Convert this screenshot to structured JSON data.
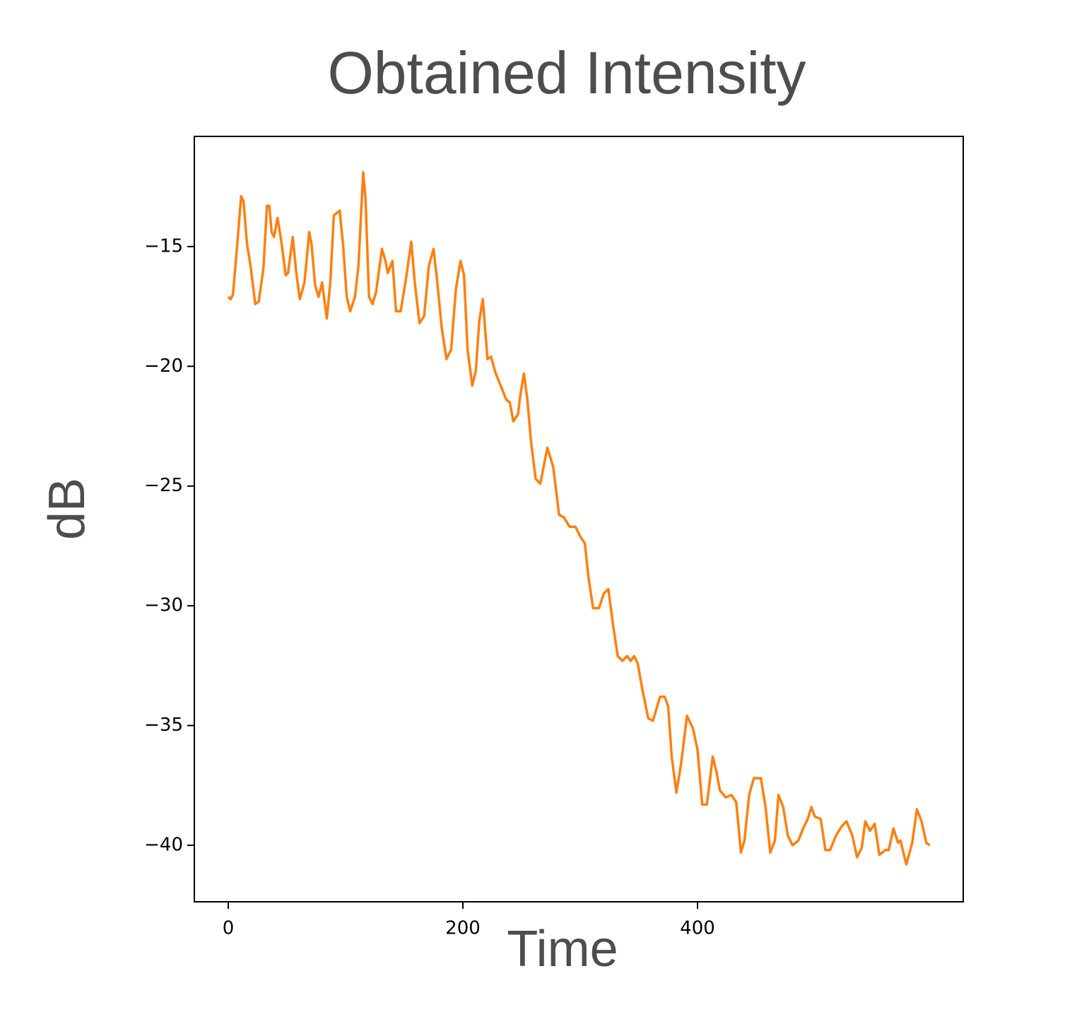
{
  "chart_data": {
    "type": "line",
    "title": "Obtained Intensity",
    "x_label": "Time",
    "y_label": "dB",
    "color": "#ff7f0e",
    "x": [
      0,
      2,
      4,
      7,
      11,
      13,
      16,
      19,
      23,
      26,
      30,
      33,
      35,
      37,
      39,
      42,
      45,
      49,
      51,
      55,
      58,
      61,
      65,
      69,
      71,
      74,
      77,
      80,
      84,
      87,
      90,
      95,
      98,
      101,
      104,
      108,
      111,
      115,
      117,
      120,
      123,
      126,
      131,
      134,
      136,
      140,
      143,
      147,
      151,
      156,
      159,
      163,
      167,
      171,
      175,
      178,
      182,
      186,
      190,
      194,
      198,
      201,
      204,
      208,
      211,
      214,
      217,
      221,
      224,
      228,
      233,
      237,
      240,
      243,
      247,
      249,
      252,
      255,
      258,
      262,
      266,
      268,
      272,
      277,
      282,
      286,
      291,
      296,
      300,
      304,
      307,
      311,
      316,
      320,
      324,
      328,
      332,
      336,
      340,
      343,
      346,
      349,
      353,
      358,
      362,
      368,
      372,
      375,
      378,
      382,
      386,
      391,
      396,
      400,
      404,
      408,
      413,
      416,
      419,
      424,
      429,
      433,
      437,
      440,
      444,
      448,
      454,
      458,
      462,
      466,
      469,
      473,
      477,
      481,
      486,
      490,
      494,
      497,
      500,
      505,
      509,
      513,
      518,
      523,
      527,
      532,
      536,
      540,
      543,
      547,
      551,
      555,
      560,
      563,
      567,
      571,
      573,
      578,
      583,
      587,
      591,
      595,
      598
    ],
    "values": [
      -17.1,
      -17.2,
      -17.0,
      -15.3,
      -12.9,
      -13.1,
      -14.9,
      -15.8,
      -17.4,
      -17.3,
      -15.9,
      -13.3,
      -13.3,
      -14.4,
      -14.6,
      -13.8,
      -14.7,
      -16.2,
      -16.1,
      -14.6,
      -16.1,
      -17.2,
      -16.5,
      -14.4,
      -14.9,
      -16.6,
      -17.1,
      -16.5,
      -18.0,
      -16.5,
      -13.7,
      -13.5,
      -15.0,
      -17.1,
      -17.7,
      -17.1,
      -15.8,
      -11.9,
      -13.0,
      -17.1,
      -17.4,
      -16.9,
      -15.1,
      -15.6,
      -16.1,
      -15.6,
      -17.7,
      -17.7,
      -16.5,
      -14.8,
      -16.5,
      -18.2,
      -17.9,
      -15.8,
      -15.1,
      -16.4,
      -18.4,
      -19.7,
      -19.3,
      -16.8,
      -15.6,
      -16.2,
      -19.3,
      -20.8,
      -20.2,
      -18.1,
      -17.2,
      -19.7,
      -19.6,
      -20.3,
      -20.9,
      -21.4,
      -21.5,
      -22.3,
      -22.0,
      -21.2,
      -20.3,
      -21.4,
      -23.1,
      -24.7,
      -24.9,
      -24.4,
      -23.4,
      -24.2,
      -26.2,
      -26.3,
      -26.7,
      -26.7,
      -27.1,
      -27.4,
      -28.8,
      -30.1,
      -30.1,
      -29.5,
      -29.3,
      -30.8,
      -32.1,
      -32.3,
      -32.1,
      -32.3,
      -32.1,
      -32.4,
      -33.5,
      -34.7,
      -34.8,
      -33.8,
      -33.8,
      -34.2,
      -36.3,
      -37.8,
      -36.6,
      -34.6,
      -35.1,
      -36.0,
      -38.3,
      -38.3,
      -36.3,
      -36.9,
      -37.7,
      -38.0,
      -37.9,
      -38.2,
      -40.3,
      -39.8,
      -37.9,
      -37.2,
      -37.2,
      -38.4,
      -40.3,
      -39.8,
      -37.9,
      -38.4,
      -39.6,
      -40.0,
      -39.8,
      -39.3,
      -38.9,
      -38.4,
      -38.8,
      -38.9,
      -40.2,
      -40.2,
      -39.6,
      -39.2,
      -39.0,
      -39.6,
      -40.5,
      -40.1,
      -39.0,
      -39.4,
      -39.1,
      -40.4,
      -40.2,
      -40.2,
      -39.3,
      -39.9,
      -39.8,
      -40.8,
      -39.9,
      -38.5,
      -39.0,
      -39.9,
      -40.0
    ],
    "xlim": [
      -28.9,
      626.5
    ],
    "ylim": [
      -42.36,
      -10.4
    ],
    "xticks": [
      0,
      200,
      400
    ],
    "yticks": [
      {
        "value": -15,
        "label": "−15"
      },
      {
        "value": -20,
        "label": "−20"
      },
      {
        "value": -25,
        "label": "−25"
      },
      {
        "value": -30,
        "label": "−30"
      },
      {
        "value": -35,
        "label": "−35"
      },
      {
        "value": -40,
        "label": "−40"
      }
    ]
  }
}
